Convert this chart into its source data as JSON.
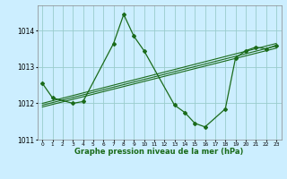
{
  "xlabel": "Graphe pression niveau de la mer (hPa)",
  "bg_color": "#cceeff",
  "grid_color": "#99cccc",
  "line_color": "#1a6b1a",
  "ylim": [
    1011.0,
    1014.7
  ],
  "xlim": [
    -0.5,
    23.5
  ],
  "yticks": [
    1011,
    1012,
    1013,
    1014
  ],
  "xticks": [
    0,
    1,
    2,
    3,
    4,
    5,
    6,
    7,
    8,
    9,
    10,
    11,
    12,
    13,
    14,
    15,
    16,
    17,
    18,
    19,
    20,
    21,
    22,
    23
  ],
  "series1": {
    "x": [
      0,
      1,
      3,
      4,
      7,
      8,
      9,
      10,
      13,
      14,
      15,
      16,
      18,
      19,
      20,
      21,
      22,
      23
    ],
    "y": [
      1012.55,
      1012.15,
      1012.0,
      1012.05,
      1013.65,
      1014.45,
      1013.85,
      1013.45,
      1011.95,
      1011.75,
      1011.45,
      1011.35,
      1011.85,
      1013.25,
      1013.45,
      1013.55,
      1013.5,
      1013.6
    ]
  },
  "series2": {
    "x": [
      0,
      23
    ],
    "y": [
      1012.0,
      1013.65
    ]
  },
  "series3": {
    "x": [
      0,
      23
    ],
    "y": [
      1011.95,
      1013.58
    ]
  },
  "series4": {
    "x": [
      0,
      23
    ],
    "y": [
      1011.9,
      1013.52
    ]
  }
}
